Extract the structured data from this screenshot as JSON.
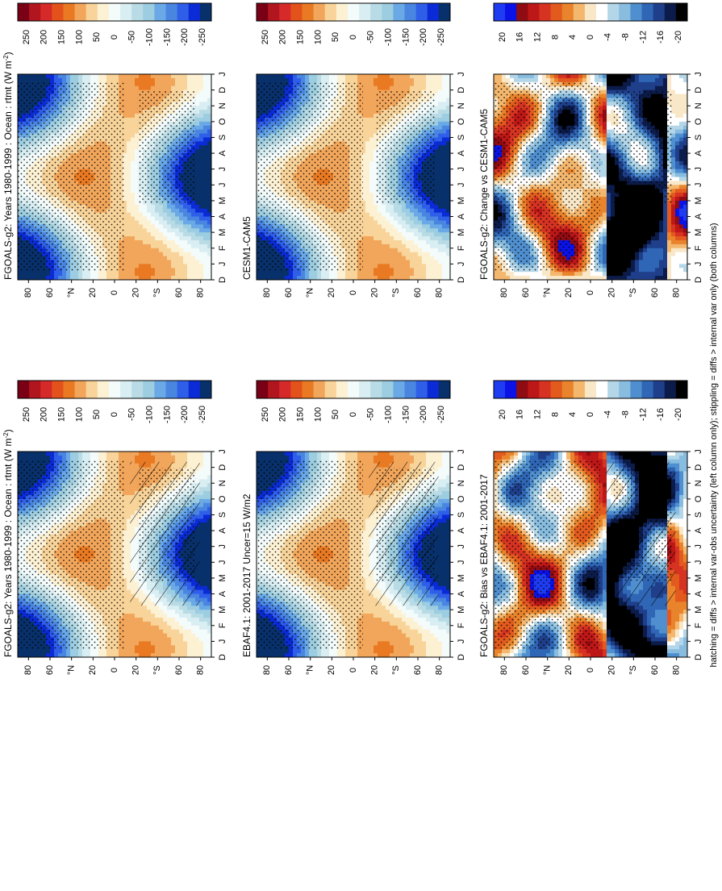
{
  "figure_caption": "hatching = diffs > internal var-obs uncertainty (left column only); stippling = diffs > internal var only (both columns)",
  "colors": {
    "rtmt_scale": [
      "#08306b",
      "#0a2bd6",
      "#2f5ee8",
      "#4a86e0",
      "#6aa9e6",
      "#9ccde0",
      "#b8dbe5",
      "#d9eef2",
      "#f4fbfb",
      "#fdf1d4",
      "#f8d49a",
      "#f2a65b",
      "#e97a23",
      "#e4521c",
      "#d62a2a",
      "#b1161e",
      "#7a0016"
    ],
    "change_scale": [
      "#000000",
      "#0c1c4a",
      "#1f3f8a",
      "#2f66b5",
      "#4f8fcf",
      "#88bde0",
      "#b3d6e8",
      "#ffffff",
      "#f9e8c8",
      "#f4b76e",
      "#e9842c",
      "#e25a1e",
      "#d63322",
      "#bd1717",
      "#8f0c12",
      "#0a12e6",
      "#1f3cf2"
    ]
  },
  "chart_data": [
    {
      "type": "heatmap",
      "id": "top-left",
      "title": "FGOALS-g2: Years 1980-1999 : Ocean : rtmt (W m",
      "title_sup": "-2",
      "title_close": ")",
      "x_ticks": [
        "D",
        "J",
        "F",
        "M",
        "A",
        "M",
        "J",
        "J",
        "A",
        "S",
        "O",
        "N",
        "D",
        "J"
      ],
      "y_ticks": [
        "80",
        "60",
        "°N",
        "20",
        "0",
        "20",
        "°S",
        "60",
        "80"
      ],
      "colorbar_labels": [
        "250",
        "200",
        "150",
        "100",
        "50",
        "0",
        "-50",
        "-100",
        "-150",
        "-200",
        "-250"
      ],
      "units": "W m-2",
      "hatching": true,
      "stippling": true,
      "peak_summer_north": 150,
      "peak_summer_south": 150,
      "polar_winter_min": -200
    },
    {
      "type": "heatmap",
      "id": "top-right",
      "title": "FGOALS-g2: Years 1980-1999 : Ocean : rtmt (W m",
      "title_sup": "-2",
      "title_close": ")",
      "x_ticks": [
        "D",
        "J",
        "F",
        "M",
        "A",
        "M",
        "J",
        "J",
        "A",
        "S",
        "O",
        "N",
        "D",
        "J"
      ],
      "y_ticks": [
        "80",
        "60",
        "°N",
        "20",
        "0",
        "20",
        "°S",
        "60",
        "80"
      ],
      "colorbar_labels": [
        "250",
        "200",
        "150",
        "100",
        "50",
        "0",
        "-50",
        "-100",
        "-150",
        "-200",
        "-250"
      ],
      "units": "W m-2",
      "hatching": false,
      "stippling": true,
      "peak_summer_north": 150,
      "peak_summer_south": 150,
      "polar_winter_min": -200
    },
    {
      "type": "heatmap",
      "id": "middle-left",
      "title": "EBAF4.1: 2001-2017 Uncer=15 W/m2",
      "x_ticks": [
        "D",
        "J",
        "F",
        "M",
        "A",
        "M",
        "J",
        "J",
        "A",
        "S",
        "O",
        "N",
        "D",
        "J"
      ],
      "y_ticks": [
        "80",
        "60",
        "°N",
        "20",
        "0",
        "20",
        "°S",
        "60",
        "80"
      ],
      "colorbar_labels": [
        "250",
        "200",
        "150",
        "100",
        "50",
        "0",
        "-50",
        "-100",
        "-150",
        "-200",
        "-250"
      ],
      "units": "W m-2",
      "hatching": true,
      "stippling": true,
      "peak_summer_north": 150,
      "peak_summer_south": 150,
      "polar_winter_min": -200
    },
    {
      "type": "heatmap",
      "id": "middle-right",
      "title": "CESM1-CAM5",
      "x_ticks": [
        "D",
        "J",
        "F",
        "M",
        "A",
        "M",
        "J",
        "J",
        "A",
        "S",
        "O",
        "N",
        "D",
        "J"
      ],
      "y_ticks": [
        "80",
        "60",
        "°N",
        "20",
        "0",
        "20",
        "°S",
        "60",
        "80"
      ],
      "colorbar_labels": [
        "250",
        "200",
        "150",
        "100",
        "50",
        "0",
        "-50",
        "-100",
        "-150",
        "-200",
        "-250"
      ],
      "units": "W m-2",
      "hatching": false,
      "stippling": true,
      "peak_summer_north": 150,
      "peak_summer_south": 150,
      "polar_winter_min": -200
    },
    {
      "type": "heatmap",
      "id": "bottom-left",
      "title": "FGOALS-g2: Bias vs EBAF4.1: 2001-2017",
      "x_ticks": [
        "D",
        "J",
        "F",
        "M",
        "A",
        "M",
        "J",
        "J",
        "A",
        "S",
        "O",
        "N",
        "D",
        "J"
      ],
      "y_ticks": [
        "80",
        "60",
        "°N",
        "20",
        "0",
        "20",
        "°S",
        "60",
        "80"
      ],
      "colorbar_labels": [
        "20",
        "16",
        "12",
        "8",
        "4",
        "0",
        "-4",
        "-8",
        "-12",
        "-16",
        "-20"
      ],
      "units": "W m-2",
      "hatching": true,
      "stippling": true,
      "max_positive": 20,
      "max_negative": -20
    },
    {
      "type": "heatmap",
      "id": "bottom-right",
      "title": "FGOALS-g2: Change vs CESM1-CAM5",
      "x_ticks": [
        "D",
        "J",
        "F",
        "M",
        "A",
        "M",
        "J",
        "J",
        "A",
        "S",
        "O",
        "N",
        "D",
        "J"
      ],
      "y_ticks": [
        "80",
        "60",
        "°N",
        "20",
        "0",
        "20",
        "°S",
        "60",
        "80"
      ],
      "colorbar_labels": [
        "20",
        "16",
        "12",
        "8",
        "4",
        "0",
        "-4",
        "-8",
        "-12",
        "-16",
        "-20"
      ],
      "units": "W m-2",
      "hatching": false,
      "stippling": true,
      "max_positive": 20,
      "max_negative": -20
    }
  ]
}
